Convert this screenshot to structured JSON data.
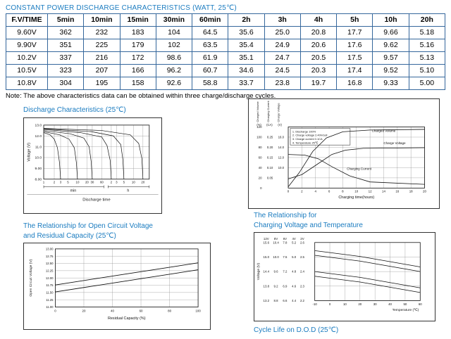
{
  "page": {
    "title": "CONSTANT POWER DISCHARGE CHARACTERISTICS (WATT, 25℃)",
    "note": "Note: The above characteristics data can be obtained within three charge/discharge cycles."
  },
  "table": {
    "headers": [
      "F.V/TIME",
      "5min",
      "10min",
      "15min",
      "30min",
      "60min",
      "2h",
      "3h",
      "4h",
      "5h",
      "10h",
      "20h"
    ],
    "rows": [
      [
        "9.60V",
        "362",
        "232",
        "183",
        "104",
        "64.5",
        "35.6",
        "25.0",
        "20.8",
        "17.7",
        "9.66",
        "5.18"
      ],
      [
        "9.90V",
        "351",
        "225",
        "179",
        "102",
        "63.5",
        "35.4",
        "24.9",
        "20.6",
        "17.6",
        "9.62",
        "5.16"
      ],
      [
        "10.2V",
        "337",
        "216",
        "172",
        "98.6",
        "61.9",
        "35.1",
        "24.7",
        "20.5",
        "17.5",
        "9.57",
        "5.13"
      ],
      [
        "10.5V",
        "323",
        "207",
        "166",
        "96.2",
        "60.7",
        "34.6",
        "24.5",
        "20.3",
        "17.4",
        "9.52",
        "5.10"
      ],
      [
        "10.8V",
        "304",
        "195",
        "158",
        "92.6",
        "58.8",
        "33.7",
        "23.8",
        "19.7",
        "16.8",
        "9.33",
        "5.00"
      ]
    ]
  },
  "sections": {
    "discharge": {
      "heading": "Discharge Characteristics (25℃)"
    },
    "ocv": {
      "heading_line1": "The Relationship for Open Circuit Voltage",
      "heading_line2": "and Residual Capacity (25℃)"
    },
    "charging_temp": {
      "heading_line1": "The Relationship for",
      "heading_line2": "Charging Voltage and Temperature"
    },
    "cycle_life": {
      "heading": "Cycle Life on D.O.D (25℃)"
    }
  },
  "chart_data": [
    {
      "id": "discharge",
      "type": "line",
      "title": "Discharge Characteristics (25℃)",
      "ylabel": "Voltage (V)",
      "xlabel": "Discharge time",
      "x_unit_left": "min",
      "x_unit_right": "h",
      "y_ticks": [
        "13.0",
        "12.0",
        "11.0",
        "10.0",
        "9.00",
        "8.00"
      ],
      "x_ticks_min": [
        "1",
        "2",
        "3",
        "5",
        "10",
        "20",
        "30",
        "60"
      ],
      "x_ticks_h": [
        "2",
        "3",
        "5",
        "10",
        "20"
      ],
      "curves": [
        [
          [
            0,
            14
          ],
          [
            6,
            18
          ],
          [
            10,
            26
          ],
          [
            13,
            42
          ],
          [
            15,
            70
          ],
          [
            16,
            100
          ]
        ],
        [
          [
            0,
            12
          ],
          [
            15,
            18
          ],
          [
            24,
            26
          ],
          [
            29,
            42
          ],
          [
            31,
            70
          ],
          [
            32,
            100
          ]
        ],
        [
          [
            0,
            10
          ],
          [
            25,
            16
          ],
          [
            38,
            24
          ],
          [
            43,
            40
          ],
          [
            45,
            68
          ],
          [
            46,
            100
          ]
        ],
        [
          [
            0,
            8
          ],
          [
            35,
            14
          ],
          [
            55,
            22
          ],
          [
            60,
            38
          ],
          [
            63,
            66
          ],
          [
            64,
            100
          ]
        ],
        [
          [
            0,
            7
          ],
          [
            45,
            12
          ],
          [
            66,
            20
          ],
          [
            73,
            36
          ],
          [
            75,
            64
          ],
          [
            76,
            100
          ]
        ],
        [
          [
            0,
            6
          ],
          [
            55,
            10
          ],
          [
            82,
            18
          ],
          [
            90,
            34
          ],
          [
            93,
            62
          ],
          [
            94,
            100
          ]
        ]
      ]
    },
    {
      "id": "charging",
      "type": "line",
      "legend": [
        "1. Discharge 100%",
        "2. Charge voltage 2.40V/cell",
        "3. Charge current 0.1CA",
        "4. Temperature 25℃"
      ],
      "axis_titles": [
        "Charged Volume",
        "Charging Current",
        "Charge Voltage"
      ],
      "axis_units": [
        "(%)",
        "(CA)",
        "(V)"
      ],
      "pct_ticks": [
        "120",
        "100",
        "80",
        "60",
        "40",
        "20",
        "0"
      ],
      "ca_ticks": [
        "0.25",
        "0.20",
        "0.15",
        "0.10",
        "0.05"
      ],
      "v_ticks": [
        "16.0",
        "14.0",
        "12.0",
        "10.0"
      ],
      "x_ticks": [
        "0",
        "2",
        "4",
        "6",
        "8",
        "10",
        "12",
        "14",
        "16",
        "18",
        "20"
      ],
      "xlabel": "Charging time(hours)",
      "series": [
        {
          "name": "Charged Volume",
          "points": [
            [
              0,
              98
            ],
            [
              8,
              75
            ],
            [
              18,
              40
            ],
            [
              28,
              18
            ],
            [
              40,
              8
            ],
            [
              60,
              5
            ],
            [
              100,
              4
            ]
          ],
          "label_pos": [
            70,
            8
          ]
        },
        {
          "name": "Charge Voltage",
          "points": [
            [
              0,
              85
            ],
            [
              10,
              78
            ],
            [
              22,
              60
            ],
            [
              32,
              45
            ],
            [
              42,
              38
            ],
            [
              55,
              35
            ],
            [
              100,
              34
            ]
          ],
          "label_pos": [
            78,
            28
          ]
        },
        {
          "name": "Charging Current",
          "points": [
            [
              0,
              45
            ],
            [
              12,
              46
            ],
            [
              22,
              52
            ],
            [
              32,
              65
            ],
            [
              45,
              80
            ],
            [
              60,
              90
            ],
            [
              100,
              94
            ]
          ],
          "label_pos": [
            52,
            70
          ]
        }
      ]
    },
    {
      "id": "ocv",
      "type": "line",
      "title": "The Relationship for Open Circuit Voltage and Residual Capacity (25℃)",
      "ylabel": "Open Circuit Voltage (V)",
      "xlabel": "Residual Capacity (%)",
      "y_ticks": [
        "13.00",
        "12.75",
        "12.50",
        "12.25",
        "12.00",
        "11.75",
        "11.50",
        "11.25",
        "11.00"
      ],
      "x_ticks": [
        "0",
        "20",
        "40",
        "60",
        "80",
        "100"
      ],
      "series": [
        {
          "points": [
            [
              0,
              62
            ],
            [
              100,
              24
            ]
          ]
        },
        {
          "points": [
            [
              0,
              74
            ],
            [
              100,
              36
            ]
          ]
        }
      ]
    },
    {
      "id": "temp",
      "type": "line",
      "title": "The Relationship for Charging Voltage and Temperature",
      "ylabel": "Voltage (V)",
      "xlabel": "Temperature (℃)",
      "col_headers": [
        "12V",
        "8V",
        "6V",
        "4V",
        "2V"
      ],
      "scale_rows": [
        [
          "15.6",
          "10.4",
          "7.8",
          "5.2",
          "2.6"
        ],
        [
          "15.0",
          "10.0",
          "7.5",
          "5.0",
          "2.5"
        ],
        [
          "14.4",
          "9.6",
          "7.2",
          "4.8",
          "2.4"
        ],
        [
          "13.8",
          "9.2",
          "6.9",
          "4.6",
          "2.3"
        ],
        [
          "13.2",
          "8.8",
          "6.6",
          "4.4",
          "2.2"
        ]
      ],
      "x_ticks": [
        "-10",
        "0",
        "10",
        "20",
        "30",
        "40",
        "50",
        "60"
      ],
      "series": [
        {
          "points": [
            [
              0,
              14
            ],
            [
              43,
              24
            ],
            [
              100,
              42
            ]
          ]
        },
        {
          "points": [
            [
              0,
              22
            ],
            [
              43,
              32
            ],
            [
              100,
              50
            ]
          ]
        },
        {
          "points": [
            [
              0,
              50
            ],
            [
              43,
              60
            ],
            [
              100,
              78
            ]
          ]
        },
        {
          "points": [
            [
              0,
              58
            ],
            [
              43,
              68
            ],
            [
              100,
              86
            ]
          ]
        }
      ]
    }
  ]
}
